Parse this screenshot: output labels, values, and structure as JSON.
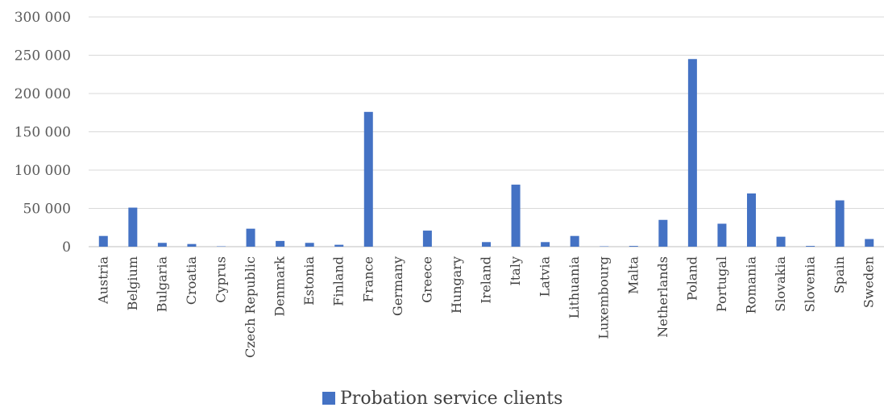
{
  "chart_data": {
    "type": "bar",
    "categories": [
      "Austria",
      "Belgium",
      "Bulgaria",
      "Croatia",
      "Cyprus",
      "Czech Republic",
      "Denmark",
      "Estonia",
      "Finland",
      "France",
      "Germany",
      "Greece",
      "Hungary",
      "Ireland",
      "Italy",
      "Latvia",
      "Lithuania",
      "Luxembourg",
      "Malta",
      "Netherlands",
      "Poland",
      "Portugal",
      "Romania",
      "Slovakia",
      "Slovenia",
      "Spain",
      "Sweden"
    ],
    "series": [
      {
        "name": "Probation service clients",
        "color": "#4472C4",
        "values": [
          14000,
          51000,
          5000,
          3500,
          500,
          23500,
          7500,
          5000,
          2500,
          176000,
          0,
          21000,
          0,
          6000,
          81000,
          6000,
          14000,
          500,
          1000,
          35000,
          245000,
          30000,
          69500,
          13000,
          1000,
          60500,
          10000
        ]
      }
    ],
    "yticks": [
      "0",
      "50 000",
      "100 000",
      "150 000",
      "200 000",
      "250 000",
      "300 000"
    ],
    "ylim": [
      0,
      300000
    ],
    "grid": true,
    "legend_position": "bottom"
  }
}
